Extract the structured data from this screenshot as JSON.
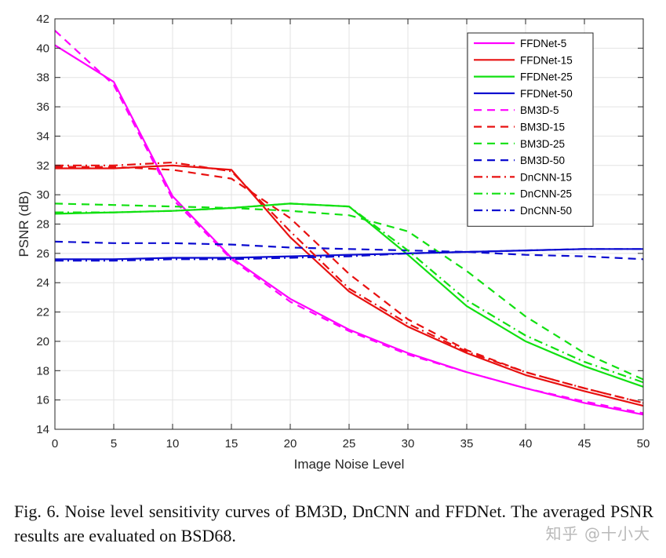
{
  "chart_data": {
    "type": "line",
    "title": "",
    "xlabel": "Image Noise Level",
    "ylabel": "PSNR (dB)",
    "xlim": [
      0,
      50
    ],
    "ylim": [
      14,
      42
    ],
    "xticks": [
      0,
      5,
      10,
      15,
      20,
      25,
      30,
      35,
      40,
      45,
      50
    ],
    "yticks": [
      14,
      16,
      18,
      20,
      22,
      24,
      26,
      28,
      30,
      32,
      34,
      36,
      38,
      40,
      42
    ],
    "grid": true,
    "legend_position": "top-right",
    "colors": {
      "magenta": "#ff00ff",
      "red": "#e81010",
      "green": "#11e011",
      "blue": "#0b0bd0"
    },
    "series": [
      {
        "name": "FFDNet-5",
        "color": "magenta",
        "style": "solid",
        "x": [
          0,
          5,
          10,
          15,
          20,
          25,
          30,
          35,
          40,
          45,
          50
        ],
        "y": [
          40.2,
          37.7,
          29.9,
          25.7,
          22.9,
          20.8,
          19.2,
          17.9,
          16.8,
          15.8,
          15.0
        ]
      },
      {
        "name": "FFDNet-15",
        "color": "red",
        "style": "solid",
        "x": [
          0,
          5,
          10,
          15,
          20,
          25,
          30,
          35,
          40,
          45,
          50
        ],
        "y": [
          31.8,
          31.8,
          32.0,
          31.7,
          27.1,
          23.4,
          21.0,
          19.2,
          17.7,
          16.6,
          15.6
        ]
      },
      {
        "name": "FFDNet-25",
        "color": "green",
        "style": "solid",
        "x": [
          0,
          5,
          10,
          15,
          20,
          25,
          30,
          35,
          40,
          45,
          50
        ],
        "y": [
          28.7,
          28.8,
          28.9,
          29.1,
          29.4,
          29.2,
          25.9,
          22.4,
          20.0,
          18.3,
          16.9
        ]
      },
      {
        "name": "FFDNet-50",
        "color": "blue",
        "style": "solid",
        "x": [
          0,
          5,
          10,
          15,
          20,
          25,
          30,
          35,
          40,
          45,
          50
        ],
        "y": [
          25.6,
          25.6,
          25.7,
          25.7,
          25.8,
          25.9,
          26.0,
          26.1,
          26.2,
          26.3,
          26.3
        ]
      },
      {
        "name": "BM3D-5",
        "color": "magenta",
        "style": "dashed",
        "x": [
          0,
          5,
          10,
          15,
          20,
          25,
          30,
          35,
          40,
          45,
          50
        ],
        "y": [
          41.2,
          37.5,
          29.7,
          25.6,
          22.7,
          20.7,
          19.1,
          17.9,
          16.8,
          15.9,
          15.1
        ]
      },
      {
        "name": "BM3D-15",
        "color": "red",
        "style": "dashed",
        "x": [
          0,
          5,
          10,
          15,
          20,
          25,
          30,
          35,
          40,
          45,
          50
        ],
        "y": [
          31.9,
          31.9,
          31.7,
          31.1,
          28.4,
          24.6,
          21.5,
          19.4,
          17.9,
          16.8,
          15.8
        ]
      },
      {
        "name": "BM3D-25",
        "color": "green",
        "style": "dashed",
        "x": [
          0,
          5,
          10,
          15,
          20,
          25,
          30,
          35,
          40,
          45,
          50
        ],
        "y": [
          29.4,
          29.3,
          29.2,
          29.1,
          28.9,
          28.6,
          27.5,
          24.8,
          21.7,
          19.2,
          17.4
        ]
      },
      {
        "name": "BM3D-50",
        "color": "blue",
        "style": "dashed",
        "x": [
          0,
          5,
          10,
          15,
          20,
          25,
          30,
          35,
          40,
          45,
          50
        ],
        "y": [
          26.8,
          26.7,
          26.7,
          26.6,
          26.4,
          26.3,
          26.2,
          26.1,
          25.9,
          25.8,
          25.6
        ]
      },
      {
        "name": "DnCNN-15",
        "color": "red",
        "style": "dashdot",
        "x": [
          0,
          5,
          10,
          15,
          20,
          25,
          30,
          35,
          40,
          45,
          50
        ],
        "y": [
          32.0,
          32.0,
          32.2,
          31.6,
          27.5,
          23.6,
          21.2,
          19.3,
          17.9,
          16.8,
          15.8
        ]
      },
      {
        "name": "DnCNN-25",
        "color": "green",
        "style": "dashdot",
        "x": [
          0,
          5,
          10,
          15,
          20,
          25,
          30,
          35,
          40,
          45,
          50
        ],
        "y": [
          28.8,
          28.8,
          28.9,
          29.1,
          29.4,
          29.2,
          26.2,
          22.8,
          20.4,
          18.6,
          17.2
        ]
      },
      {
        "name": "DnCNN-50",
        "color": "blue",
        "style": "dashdot",
        "x": [
          0,
          5,
          10,
          15,
          20,
          25,
          30,
          35,
          40,
          45,
          50
        ],
        "y": [
          25.5,
          25.5,
          25.6,
          25.6,
          25.7,
          25.8,
          26.0,
          26.1,
          26.2,
          26.3,
          26.3
        ]
      }
    ]
  },
  "caption": "Fig. 6.  Noise level sensitivity curves of BM3D, DnCNN and FFDNet. The averaged PSNR results are evaluated on BSD68.",
  "watermark": "知乎 @十小大"
}
